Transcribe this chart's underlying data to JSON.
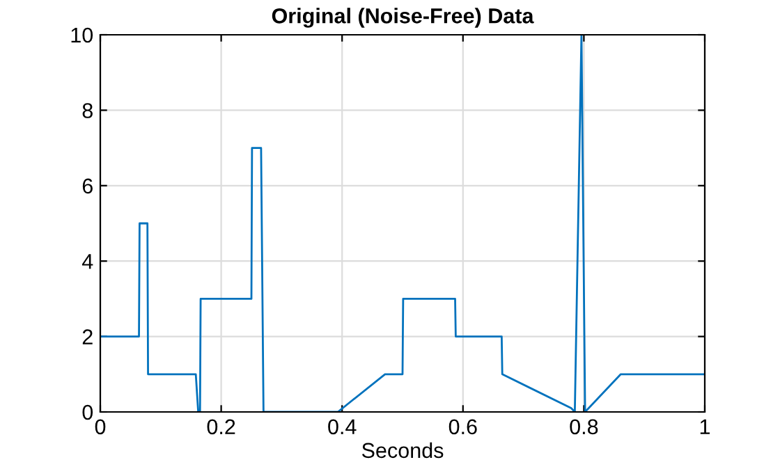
{
  "chart_data": {
    "type": "line",
    "title": "Original (Noise-Free) Data",
    "xlabel": "Seconds",
    "series": [
      {
        "color": "#0072bd",
        "x": [
          0,
          0.064,
          0.065,
          0.078,
          0.079,
          0.158,
          0.162,
          0.165,
          0.166,
          0.25,
          0.251,
          0.266,
          0.27,
          0.393,
          0.471,
          0.5,
          0.501,
          0.587,
          0.588,
          0.664,
          0.665,
          0.779,
          0.785,
          0.796,
          0.802,
          0.861,
          1
        ],
        "values": [
          2,
          2,
          5,
          5,
          1,
          1,
          0,
          0,
          3,
          3,
          7,
          7,
          0,
          0,
          1,
          1,
          3,
          3,
          2,
          2,
          1,
          0.1,
          0,
          10,
          0,
          1,
          1
        ]
      }
    ],
    "xlim": [
      0,
      1
    ],
    "ylim": [
      0,
      10
    ],
    "xticks": [
      0,
      0.2,
      0.4,
      0.6,
      0.8,
      1
    ],
    "yticks": [
      0,
      2,
      4,
      6,
      8,
      10
    ],
    "grid": true,
    "line_style": "solid",
    "marker": "none"
  }
}
